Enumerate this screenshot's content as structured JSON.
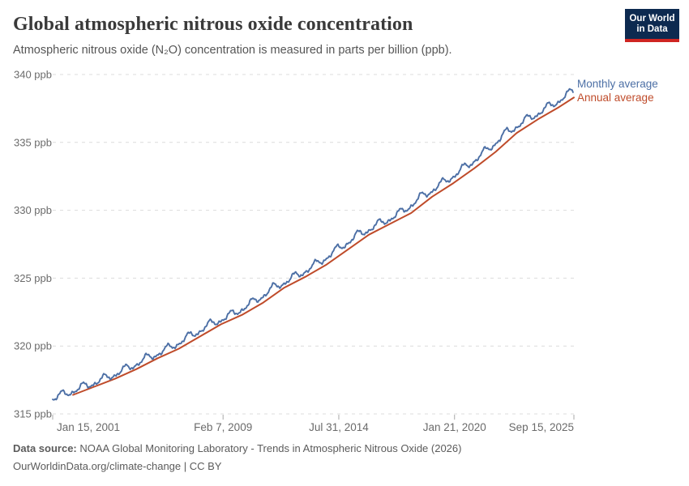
{
  "header": {
    "title": "Global atmospheric nitrous oxide concentration",
    "subtitle": "Atmospheric nitrous oxide (N₂O) concentration is measured in parts per billion (ppb).",
    "logo": {
      "line1": "Our World",
      "line2": "in Data"
    }
  },
  "legend": {
    "items": [
      {
        "label": "Monthly average",
        "color": "#4c6fa5"
      },
      {
        "label": "Annual average",
        "color": "#bf4b2a"
      }
    ]
  },
  "footer": {
    "source_label": "Data source:",
    "source_text": " NOAA Global Monitoring Laboratory - Trends in Atmospheric Nitrous Oxide (2026)",
    "url": "OurWorldinData.org/climate-change",
    "separator": " | ",
    "license": "CC BY"
  },
  "colors": {
    "monthly_line": "#4c6fa5",
    "annual_line": "#bf4b2a",
    "gridline": "#dcdcdc",
    "tick": "#a8a8a8",
    "axis_label": "#6b6b6b",
    "logo_bg": "#0d2a50",
    "logo_accent": "#cf2522",
    "title_text": "#3a3a3a",
    "subtitle_text": "#555555",
    "footer_text": "#5b5b5b"
  },
  "chart_data": {
    "type": "line",
    "title": "Global atmospheric nitrous oxide concentration",
    "xlabel": "",
    "ylabel": "parts per billion (ppb)",
    "ylim": [
      315,
      340
    ],
    "xlim": [
      2001.038,
      2025.704
    ],
    "grid": "dashed-horizontal",
    "legend_position": "right-of-line-ends",
    "y_ticks": [
      {
        "value": 315,
        "label": "315 ppb"
      },
      {
        "value": 320,
        "label": "320 ppb"
      },
      {
        "value": 325,
        "label": "325 ppb"
      },
      {
        "value": 330,
        "label": "330 ppb"
      },
      {
        "value": 335,
        "label": "335 ppb"
      },
      {
        "value": 340,
        "label": "340 ppb"
      }
    ],
    "x_ticks": [
      {
        "t": 2001.038,
        "label": "Jan 15, 2001"
      },
      {
        "t": 2009.101,
        "label": "Feb 7, 2009"
      },
      {
        "t": 2014.578,
        "label": "Jul 31, 2014"
      },
      {
        "t": 2020.055,
        "label": "Jan 21, 2020"
      },
      {
        "t": 2025.704,
        "label": "Sep 15, 2025"
      }
    ],
    "series": [
      {
        "name": "Annual average",
        "color": "#bf4b2a",
        "kind": "annual",
        "plotted_at": "year_end",
        "years": [
          2001,
          2002,
          2003,
          2004,
          2005,
          2006,
          2007,
          2008,
          2009,
          2010,
          2011,
          2012,
          2013,
          2014,
          2015,
          2016,
          2017,
          2018,
          2019,
          2020,
          2021,
          2022,
          2023,
          2024,
          2025
        ],
        "values": [
          316.4,
          317.0,
          317.6,
          318.3,
          319.1,
          319.8,
          320.7,
          321.6,
          322.3,
          323.2,
          324.3,
          325.1,
          326.0,
          327.1,
          328.2,
          329.0,
          329.8,
          331.0,
          332.0,
          333.1,
          334.3,
          335.7,
          336.7,
          337.6,
          338.6
        ]
      },
      {
        "name": "Monthly average",
        "color": "#4c6fa5",
        "kind": "monthly",
        "derived": "annual trend (values plotted at mid-year) plus seasonal cycle",
        "first_point": {
          "t": 2001.038,
          "value": 316.2
        },
        "last_point": {
          "t": 2025.704,
          "value": 339.0
        },
        "seasonal": {
          "a1": 0.22,
          "p1": 0.45,
          "a2": 0.12,
          "p2": 0.48,
          "noise": [
            [
              0.05,
              47.0,
              0.0
            ],
            [
              0.04,
              29.0,
              1.3
            ]
          ]
        },
        "step_years": 0.041666
      }
    ]
  }
}
